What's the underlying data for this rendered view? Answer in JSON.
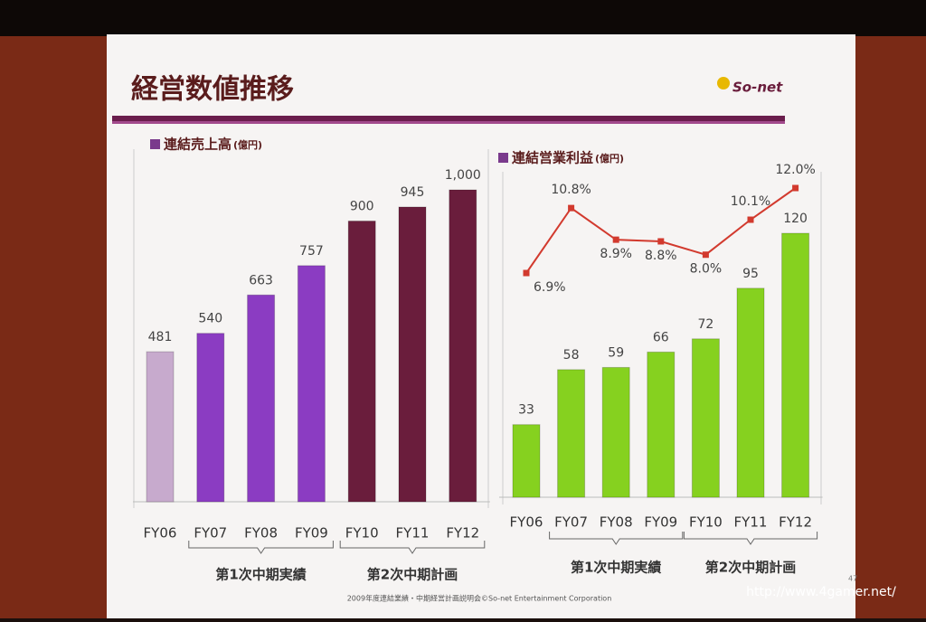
{
  "slide": {
    "title": "経営数値推移",
    "logo": "So-net",
    "footer": "2009年度連結業績・中期経営計画説明会©So-net Entertainment Corporation",
    "page": "47",
    "watermark": "http://www.4gamer.net/"
  },
  "chart_data": [
    {
      "type": "bar",
      "title": "連結売上高",
      "unit": "(億円)",
      "categories": [
        "FY06",
        "FY07",
        "FY08",
        "FY09",
        "FY10",
        "FY11",
        "FY12"
      ],
      "values": [
        481,
        540,
        663,
        757,
        900,
        945,
        1000
      ],
      "value_labels": [
        "481",
        "540",
        "663",
        "757",
        "900",
        "945",
        "1,000"
      ],
      "colors": [
        "#c7aacd",
        "#8b3cc2",
        "#8b3cc2",
        "#8b3cc2",
        "#6a1d3c",
        "#6a1d3c",
        "#6a1d3c"
      ],
      "groups": [
        {
          "label": "第1次中期実績",
          "members": [
            "FY07",
            "FY08",
            "FY09"
          ]
        },
        {
          "label": "第2次中期計画",
          "members": [
            "FY10",
            "FY11",
            "FY12"
          ]
        }
      ]
    },
    {
      "type": "combo",
      "title": "連結営業利益",
      "unit": "(億円)",
      "categories": [
        "FY06",
        "FY07",
        "FY08",
        "FY09",
        "FY10",
        "FY11",
        "FY12"
      ],
      "series": [
        {
          "type": "bar",
          "color": "#86d11f",
          "values": [
            33,
            58,
            59,
            66,
            72,
            95,
            120
          ]
        },
        {
          "type": "line",
          "axis": "y2",
          "color": "#d23a2e",
          "values": [
            6.9,
            10.8,
            8.9,
            8.8,
            8.0,
            10.1,
            12.0
          ],
          "value_labels": [
            "6.9%",
            "10.8%",
            "8.9%",
            "8.8%",
            "8.0%",
            "10.1%",
            "12.0%"
          ]
        }
      ],
      "groups": [
        {
          "label": "第1次中期実績",
          "members": [
            "FY07",
            "FY08",
            "FY09"
          ]
        },
        {
          "label": "第2次中期計画",
          "members": [
            "FY10",
            "FY11",
            "FY12"
          ]
        }
      ]
    }
  ]
}
